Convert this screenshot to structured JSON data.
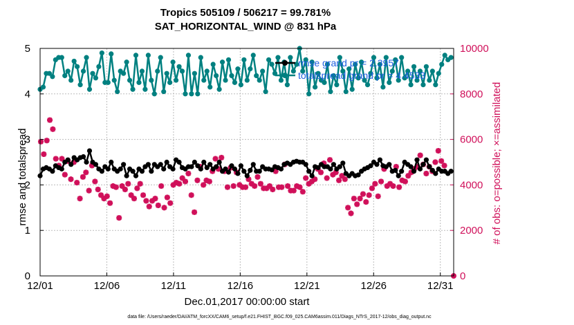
{
  "chart_data": {
    "type": "line",
    "title": "Tropics 505109 / 506217 = 99.781%",
    "subtitle": "SAT_HORIZONTAL_WIND @ 831 hPa",
    "xlabel": "Dec.01,2017 00:00:00 start",
    "ylabel": "rmse and totalspread",
    "y2label": "# of obs: o=possible; ×=assimilated",
    "footnote": "data file: /Users/raeder/DAI/ATM_forcXX/CAM6_setup/f.e21.FHIST_BGC.f09_025.CAM6assim.011/Diags_NTrS_2017-12/obs_diag_output.nc",
    "x_ticks": [
      "12/01",
      "12/06",
      "12/11",
      "12/16",
      "12/21",
      "12/26",
      "12/31"
    ],
    "x_tick_days": [
      0,
      5,
      10,
      15,
      20,
      25,
      30
    ],
    "xlim": [
      0,
      31
    ],
    "ylim": [
      0,
      5
    ],
    "y_ticks": [
      "0",
      "1",
      "2",
      "3",
      "4",
      "5"
    ],
    "y2lim": [
      0,
      10000
    ],
    "y2_ticks": [
      "0",
      "2000",
      "4000",
      "6000",
      "8000",
      "10000"
    ],
    "grid": true,
    "legend_position": "top-right",
    "series": [
      {
        "name": "rmse grand pr = 2.3957",
        "axis": "left",
        "color": "#000000",
        "marker": "dot",
        "values": [
          2.2,
          2.35,
          2.38,
          2.35,
          2.3,
          2.42,
          2.38,
          2.35,
          2.5,
          2.55,
          2.45,
          2.6,
          2.55,
          2.6,
          2.62,
          2.5,
          2.75,
          2.5,
          2.45,
          2.35,
          2.3,
          2.4,
          2.35,
          2.5,
          2.35,
          2.3,
          2.35,
          2.45,
          2.2,
          2.35,
          2.3,
          2.2,
          2.35,
          2.3,
          2.4,
          2.45,
          2.3,
          2.45,
          2.4,
          2.45,
          2.35,
          2.5,
          2.4,
          2.35,
          2.55,
          2.5,
          2.38,
          2.35,
          2.4,
          2.4,
          2.5,
          2.42,
          2.35,
          2.5,
          2.38,
          2.45,
          2.35,
          2.4,
          2.5,
          2.3,
          2.35,
          2.28,
          2.42,
          2.35,
          2.25,
          2.42,
          2.3,
          2.2,
          2.32,
          2.45,
          2.3,
          2.3,
          2.4,
          2.35,
          2.35,
          2.33,
          2.4,
          2.38,
          2.35,
          2.45,
          2.48,
          2.45,
          2.5,
          2.52,
          2.5,
          2.5,
          2.45,
          2.3,
          2.2,
          2.4,
          2.38,
          2.45,
          2.4,
          2.4,
          2.35,
          2.45,
          2.35,
          2.4,
          2.48,
          2.25,
          2.2,
          2.25,
          2.2,
          2.22,
          2.3,
          2.35,
          2.38,
          2.42,
          2.5,
          2.45,
          2.55,
          2.42,
          2.4,
          2.45,
          2.3,
          2.32,
          2.2,
          2.3,
          2.5,
          2.45,
          2.4,
          2.3,
          2.55,
          2.35,
          2.45,
          2.55,
          2.4,
          2.32,
          2.25,
          2.35,
          2.3,
          2.3,
          2.25,
          2.3
        ]
      },
      {
        "name": "totalspread grand pr = 4.4533",
        "axis": "left",
        "color": "#008080",
        "marker": "dot",
        "values": [
          4.1,
          4.15,
          4.45,
          4.45,
          4.38,
          4.75,
          4.8,
          4.8,
          4.4,
          4.5,
          4.3,
          4.72,
          4.6,
          4.2,
          4.5,
          4.8,
          4.1,
          4.45,
          4.35,
          4.6,
          4.9,
          4.25,
          4.25,
          4.88,
          4.3,
          4.05,
          4.5,
          4.45,
          4.7,
          4.3,
          4.1,
          4.85,
          4.25,
          4.5,
          4.1,
          4.85,
          4.3,
          4.0,
          4.5,
          4.8,
          4.05,
          4.45,
          4.25,
          4.7,
          4.3,
          4.6,
          4.5,
          4.0,
          4.85,
          4.0,
          4.45,
          4.0,
          4.8,
          4.3,
          4.5,
          4.15,
          4.65,
          4.4,
          4.1,
          4.7,
          4.3,
          4.75,
          4.4,
          4.25,
          4.55,
          4.2,
          4.75,
          4.3,
          4.55,
          4.85,
          4.4,
          4.3,
          4.5,
          4.05,
          4.75,
          4.65,
          4.45,
          4.8,
          4.3,
          4.7,
          4.2,
          4.8,
          4.5,
          4.65,
          5.0,
          4.5,
          4.75,
          4.0,
          4.7,
          4.15,
          4.45,
          4.3,
          4.25,
          4.65,
          4.05,
          4.4,
          4.2,
          4.8,
          4.5,
          4.05,
          4.55,
          4.1,
          4.65,
          4.35,
          4.7,
          4.3,
          4.2,
          4.45,
          4.8,
          4.35,
          4.65,
          4.15,
          4.8,
          4.25,
          4.5,
          4.75,
          4.3,
          4.8,
          4.35,
          4.5,
          4.2,
          4.6,
          4.3,
          4.5,
          4.2,
          4.6,
          4.3,
          4.5,
          4.2,
          4.45,
          4.65,
          4.85,
          4.75,
          4.8
        ]
      }
    ],
    "obs_possible": {
      "name": "possible",
      "axis": "right",
      "color": "#d0105a",
      "marker": "circle",
      "note": "hidden behind assimilated markers"
    },
    "obs_assimilated": {
      "name": "assimilated",
      "axis": "right",
      "color": "#d0105a",
      "marker": "cross",
      "values": [
        5900,
        5350,
        5950,
        6850,
        6450,
        5150,
        4850,
        5150,
        4450,
        5050,
        4250,
        5000,
        4100,
        3400,
        4350,
        4550,
        3750,
        4850,
        4150,
        3800,
        3550,
        3400,
        3500,
        3200,
        3950,
        3900,
        2550,
        3950,
        3800,
        4050,
        3550,
        3400,
        3850,
        4050,
        3550,
        3300,
        3050,
        3300,
        3400,
        3100,
        3950,
        3000,
        3450,
        3200,
        4000,
        4100,
        4050,
        4300,
        4150,
        4500,
        3550,
        2800,
        4200,
        4800,
        4000,
        4200,
        4150,
        4600,
        5150,
        4700,
        5200,
        4600,
        3900,
        4750,
        3950,
        4550,
        4000,
        3900,
        3900,
        4250,
        4050,
        3950,
        4350,
        4050,
        3850,
        3850,
        3950,
        3800,
        4600,
        3900,
        3900,
        4900,
        3950,
        3750,
        3750,
        3950,
        3900,
        3700,
        4300,
        4050,
        4150,
        4250,
        4700,
        4550,
        4950,
        4300,
        5100,
        4450,
        4550,
        4200,
        4400,
        4250,
        3000,
        2750,
        3400,
        3150,
        3400,
        3600,
        3250,
        3550,
        3850,
        4050,
        3500,
        4150,
        4700,
        3950,
        4050,
        3950,
        4800,
        3900,
        4200,
        4150,
        4400,
        4550,
        4700,
        4800,
        5300,
        4900,
        4500,
        4800,
        4600,
        5000,
        5500,
        5050,
        4850
      ]
    },
    "extra_points": [
      {
        "axis": "right",
        "x_day": 31.0,
        "value": 0,
        "marker": "dot"
      }
    ]
  }
}
